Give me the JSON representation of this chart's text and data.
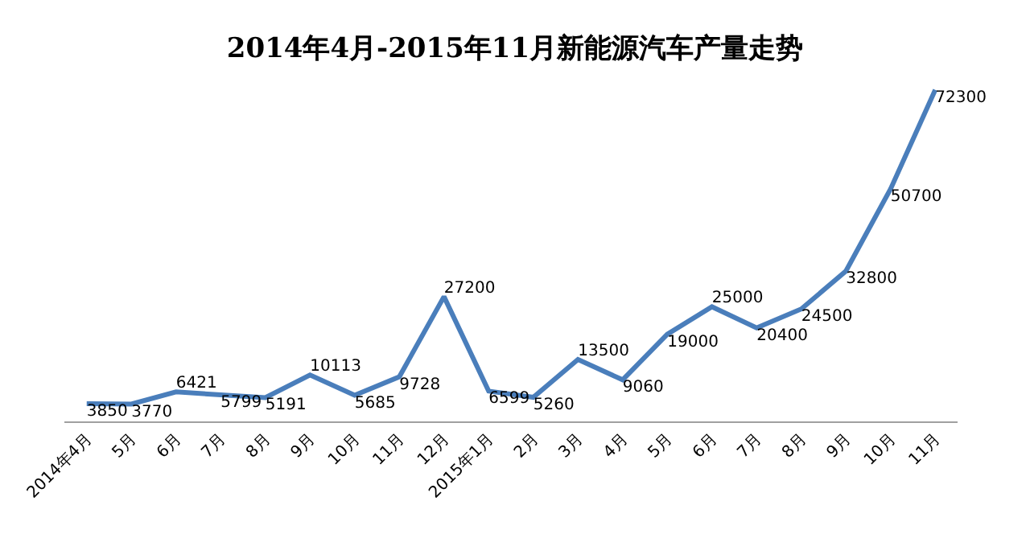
{
  "chart_data": {
    "type": "line",
    "title": "2014年4月-2015年11月新能源汽车产量走势",
    "categories": [
      "2014年4月",
      "5月",
      "6月",
      "7月",
      "8月",
      "9月",
      "10月",
      "11月",
      "12月",
      "2015年1月",
      "2月",
      "3月",
      "4月",
      "5月",
      "6月",
      "7月",
      "8月",
      "9月",
      "10月",
      "11月"
    ],
    "series": [
      {
        "color": "#4a7ebb",
        "values": [
          3850,
          3770,
          6421,
          5799,
          5191,
          10113,
          5685,
          9728,
          27200,
          6599,
          5260,
          13500,
          9060,
          19000,
          25000,
          20400,
          24500,
          32800,
          50700,
          72300
        ]
      }
    ],
    "data_labels": true,
    "tick_labels": "x",
    "marker": "none",
    "line_style": "solid"
  }
}
